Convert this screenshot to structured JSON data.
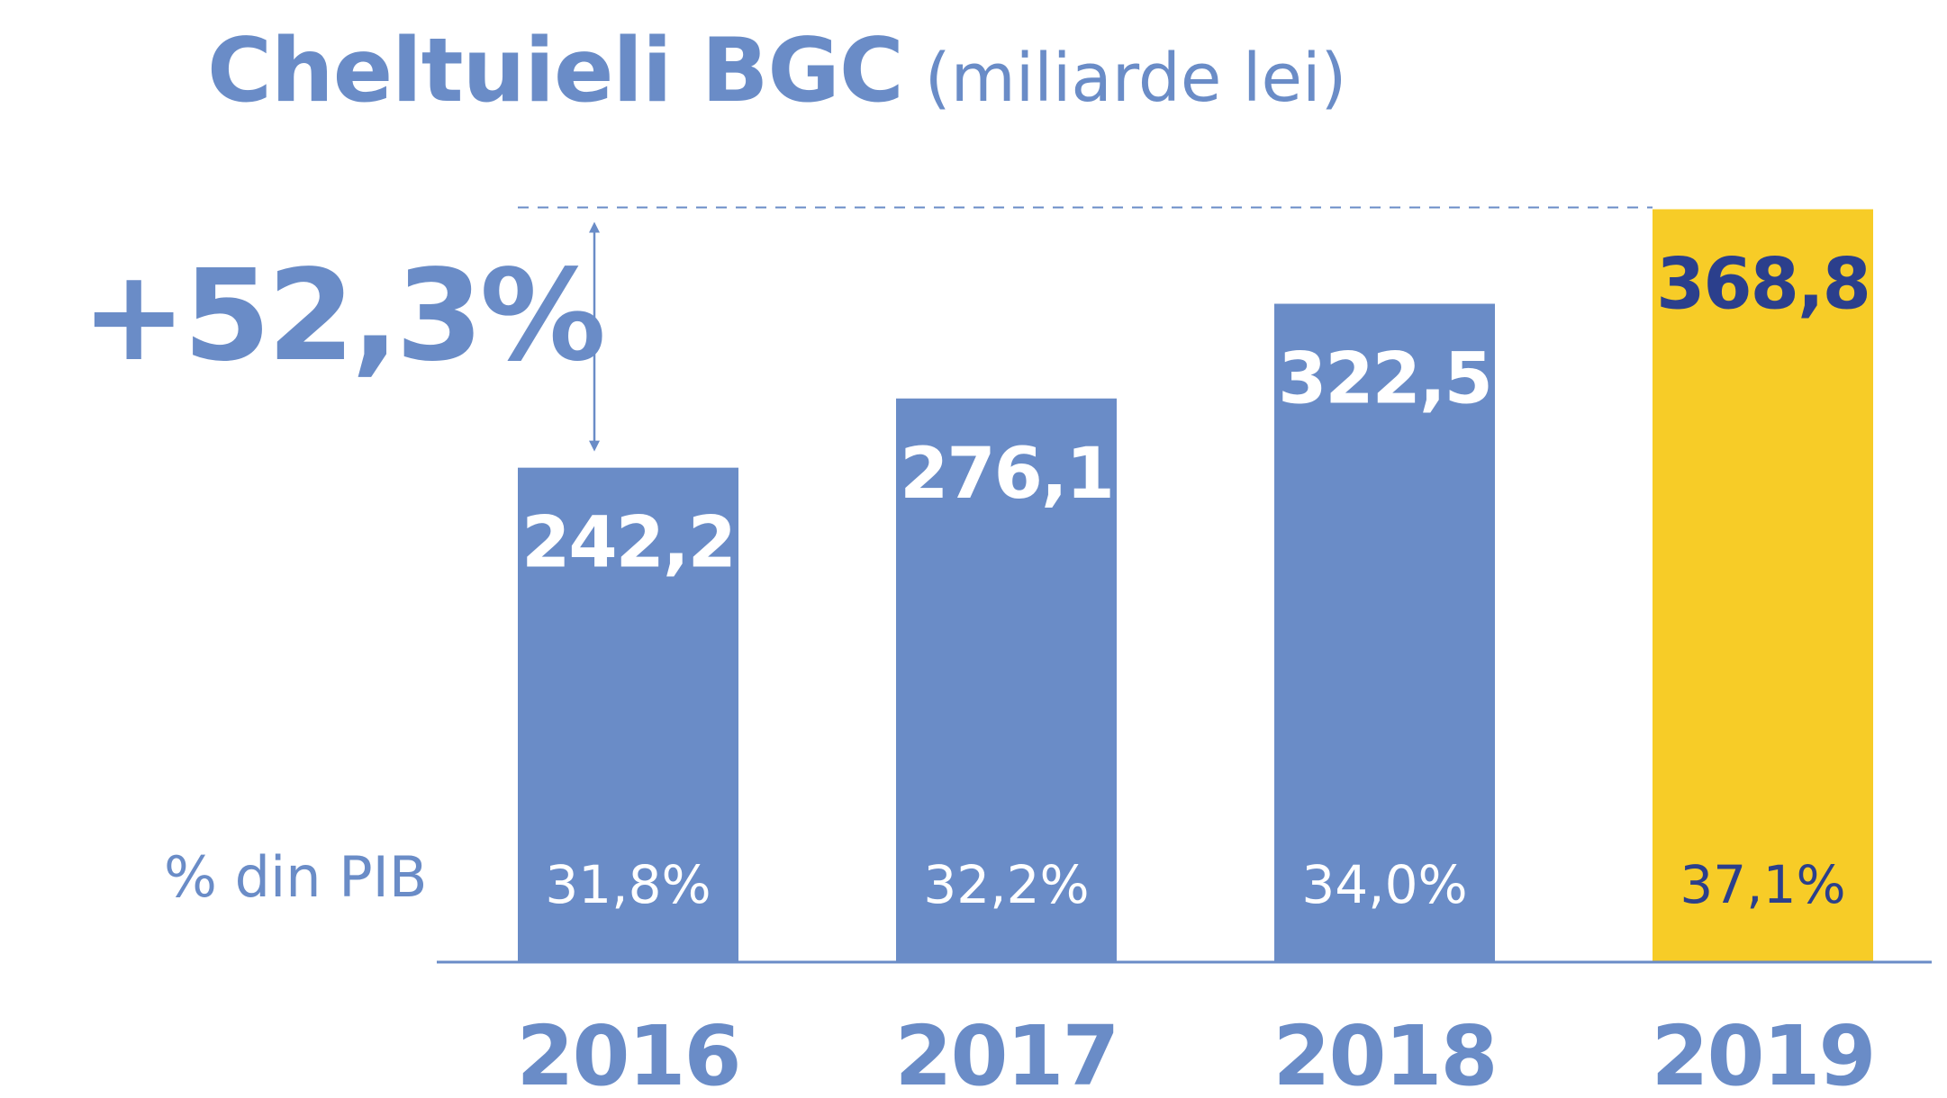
{
  "chart_data": {
    "type": "bar",
    "title": "Cheltuieli BGC",
    "subtitle": "(miliarde lei)",
    "categories": [
      "2016",
      "2017",
      "2018",
      "2019"
    ],
    "values": [
      242.2,
      276.1,
      322.5,
      368.8
    ],
    "value_labels": [
      "242,2",
      "276,1",
      "322,5",
      "368,8"
    ],
    "pct_gdp_label": "% din PIB",
    "pct_gdp_values": [
      31.8,
      32.2,
      34.0,
      37.1
    ],
    "pct_gdp_labels": [
      "31,8%",
      "32,2%",
      "34,0%",
      "37,1%"
    ],
    "growth_label": "+52,3%",
    "highlight_category": "2019",
    "xlabel": "",
    "ylabel": "",
    "grid": false,
    "colors": {
      "bar": "#6a8cc7",
      "highlight": "#f7cc27",
      "text_on_bar": "#ffffff",
      "text_on_highlight": "#2b3f8c",
      "accent": "#6a8cc7"
    }
  }
}
